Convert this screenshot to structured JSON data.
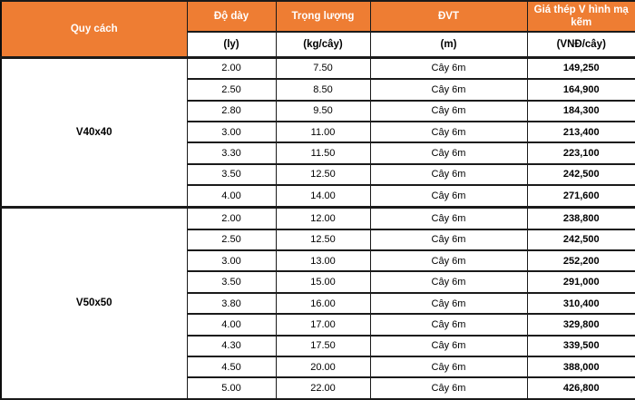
{
  "colors": {
    "header_bg": "#EE7D33",
    "header_text": "#FFFFFF",
    "body_text": "#000000",
    "border": "#1A1A1A"
  },
  "table": {
    "headers": {
      "spec": "Quy cách",
      "thickness": "Độ dày",
      "weight": "Trọng lượng",
      "unit": "ĐVT",
      "price": "Giá thép V hình mạ kẽm"
    },
    "subheaders": {
      "thickness": "(ly)",
      "weight": "(kg/cây)",
      "unit": "(m)",
      "price": "(VNĐ/cây)"
    },
    "sections": [
      {
        "name": "V40x40",
        "rows": [
          {
            "thickness": "2.00",
            "weight": "7.50",
            "unit": "Cây 6m",
            "price": "149,250"
          },
          {
            "thickness": "2.50",
            "weight": "8.50",
            "unit": "Cây 6m",
            "price": "164,900"
          },
          {
            "thickness": "2.80",
            "weight": "9.50",
            "unit": "Cây 6m",
            "price": "184,300"
          },
          {
            "thickness": "3.00",
            "weight": "11.00",
            "unit": "Cây 6m",
            "price": "213,400"
          },
          {
            "thickness": "3.30",
            "weight": "11.50",
            "unit": "Cây 6m",
            "price": "223,100"
          },
          {
            "thickness": "3.50",
            "weight": "12.50",
            "unit": "Cây 6m",
            "price": "242,500"
          },
          {
            "thickness": "4.00",
            "weight": "14.00",
            "unit": "Cây 6m",
            "price": "271,600"
          }
        ]
      },
      {
        "name": "V50x50",
        "rows": [
          {
            "thickness": "2.00",
            "weight": "12.00",
            "unit": "Cây 6m",
            "price": "238,800"
          },
          {
            "thickness": "2.50",
            "weight": "12.50",
            "unit": "Cây 6m",
            "price": "242,500"
          },
          {
            "thickness": "3.00",
            "weight": "13.00",
            "unit": "Cây 6m",
            "price": "252,200"
          },
          {
            "thickness": "3.50",
            "weight": "15.00",
            "unit": "Cây 6m",
            "price": "291,000"
          },
          {
            "thickness": "3.80",
            "weight": "16.00",
            "unit": "Cây 6m",
            "price": "310,400"
          },
          {
            "thickness": "4.00",
            "weight": "17.00",
            "unit": "Cây 6m",
            "price": "329,800"
          },
          {
            "thickness": "4.30",
            "weight": "17.50",
            "unit": "Cây 6m",
            "price": "339,500"
          },
          {
            "thickness": "4.50",
            "weight": "20.00",
            "unit": "Cây 6m",
            "price": "388,000"
          },
          {
            "thickness": "5.00",
            "weight": "22.00",
            "unit": "Cây 6m",
            "price": "426,800"
          }
        ]
      }
    ]
  }
}
